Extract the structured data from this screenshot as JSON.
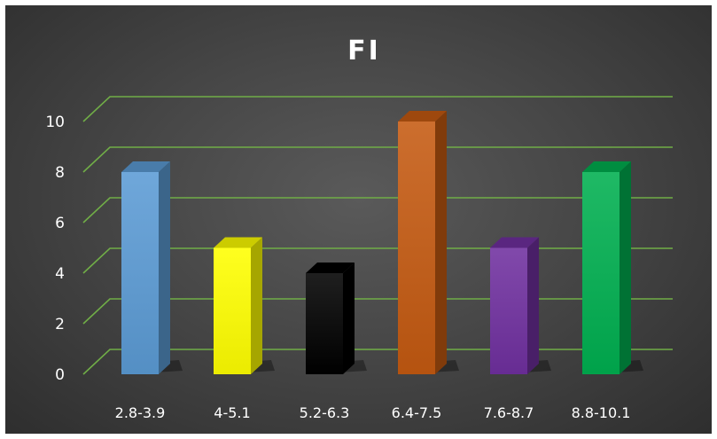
{
  "chart_data": {
    "type": "bar",
    "title": "FI",
    "xlabel": "",
    "ylabel": "",
    "categories": [
      "2.8-3.9",
      "4-5.1",
      "5.2-6.3",
      "6.4-7.5",
      "7.6-8.7",
      "8.8-10.1"
    ],
    "values": [
      8,
      5,
      4,
      10,
      5,
      8
    ],
    "ylim": [
      0,
      10
    ],
    "yticks": [
      "0",
      "2",
      "4",
      "6",
      "8",
      "10"
    ],
    "grid": true,
    "legend": "none",
    "colors": {
      "bars": [
        "#5b9bd5",
        "#ffff00",
        "#000000",
        "#c55a11",
        "#7030a0",
        "#00b050"
      ],
      "grid": "#70ad47",
      "background": "#474747",
      "text": "#ffffff"
    }
  }
}
